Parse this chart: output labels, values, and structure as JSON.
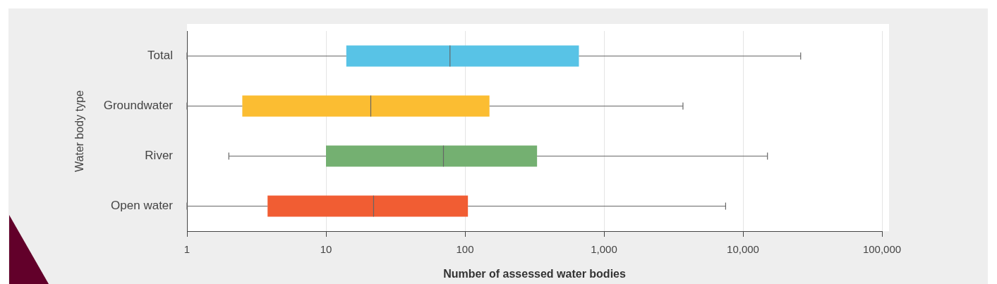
{
  "chart_data": {
    "type": "box",
    "orientation": "horizontal",
    "xlabel": "Number of assessed water bodies",
    "ylabel": "Water body type",
    "categories": [
      "Total",
      "Groundwater",
      "River",
      "Open water"
    ],
    "colors": [
      "#58c3e6",
      "#fbbd32",
      "#74b071",
      "#f15d33"
    ],
    "boxes": [
      {
        "low": 1,
        "q1": 14,
        "median": 78,
        "q3": 660,
        "high": 26000
      },
      {
        "low": 1,
        "q1": 2.5,
        "median": 21,
        "q3": 150,
        "high": 3700
      },
      {
        "low": 2,
        "q1": 10,
        "median": 70,
        "q3": 330,
        "high": 15000
      },
      {
        "low": 1,
        "q1": 3.8,
        "median": 22,
        "q3": 105,
        "high": 7500
      }
    ],
    "log": "x",
    "xlim": [
      1,
      100000
    ],
    "xticks": [
      1,
      10,
      100,
      {
        "value": 1000,
        "label": "1,000"
      },
      {
        "value": 10000,
        "label": "10,000"
      },
      {
        "value": 100000,
        "label": "100,000"
      }
    ],
    "grid": "x",
    "legend": false
  }
}
